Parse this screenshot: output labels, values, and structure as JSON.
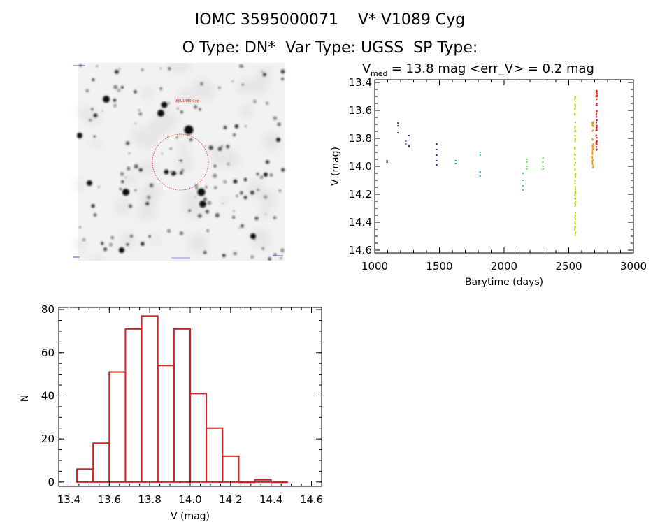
{
  "header": {
    "title_line1": "IOMC 3595000071    V* V1089 Cyg",
    "title_line2": "O Type: DN*  Var Type: UGSS  SP Type:"
  },
  "colors": {
    "histogram": "#cc2222",
    "sky_circle": "#dd2222",
    "lc_palette": [
      "#22228a",
      "#2a3fb0",
      "#2a7fd0",
      "#22c0d8",
      "#2ad08a",
      "#4cd04c",
      "#a8e020",
      "#ff9a10",
      "#dd2222"
    ]
  },
  "chart_data": [
    {
      "type": "image",
      "name": "sky-field",
      "label_top": "V* V1089 Cyg",
      "has_circle": true
    },
    {
      "type": "scatter",
      "title_prefix": "V",
      "title_sub": "med",
      "title_rest": " = 13.8 mag <err_V> = 0.2 mag",
      "xlabel": "Barytime (days)",
      "ylabel": "V (mag)",
      "xlim": [
        1000,
        3000
      ],
      "ylim": [
        14.62,
        13.38
      ],
      "xticks": [
        1000,
        1500,
        2000,
        2500,
        3000
      ],
      "yticks": [
        "13.4",
        "13.6",
        "13.8",
        "14.0",
        "14.2",
        "14.4",
        "14.6"
      ],
      "ytick_values": [
        13.4,
        13.6,
        13.8,
        14.0,
        14.2,
        14.4,
        14.6
      ],
      "groups": [
        {
          "x": 1095,
          "v": [
            13.96,
            13.97
          ],
          "color": "#22228a"
        },
        {
          "x": 1180,
          "v": [
            13.69,
            13.71,
            13.76
          ],
          "color": "#22228a"
        },
        {
          "x": 1240,
          "v": [
            13.82,
            13.84
          ],
          "color": "#2a3fb0"
        },
        {
          "x": 1265,
          "v": [
            13.78,
            13.85,
            13.86
          ],
          "color": "#2a3fb0"
        },
        {
          "x": 1480,
          "v": [
            13.84,
            13.88,
            13.92,
            13.96,
            13.99
          ],
          "color": "#2a3fb0"
        },
        {
          "x": 1625,
          "v": [
            13.96,
            13.98
          ],
          "color": "#2a7fd0"
        },
        {
          "x": 1815,
          "v": [
            13.9,
            13.92,
            14.04,
            14.07
          ],
          "color": "#22c0d8"
        },
        {
          "x": 2145,
          "v": [
            14.05,
            14.1,
            14.14,
            14.17
          ],
          "color": "#2ad08a"
        },
        {
          "x": 2175,
          "v": [
            13.95,
            13.97,
            14.0,
            14.02
          ],
          "color": "#4cd04c"
        },
        {
          "x": 2300,
          "v": [
            13.94,
            13.97,
            14.0,
            14.02
          ],
          "color": "#4cd04c"
        },
        {
          "x": 2550,
          "v_range": [
            13.5,
            14.52
          ],
          "count": 90,
          "color": "#a8e020"
        },
        {
          "x": 2685,
          "v_range": [
            13.68,
            14.02
          ],
          "count": 40,
          "color": "#ff9a10"
        },
        {
          "x": 2715,
          "v_range": [
            13.44,
            13.9
          ],
          "count": 45,
          "color": "#dd2222"
        }
      ]
    },
    {
      "type": "bar",
      "xlabel": "V (mag)",
      "ylabel": "N",
      "xlim": [
        13.35,
        14.65
      ],
      "ylim": [
        -2,
        81
      ],
      "xticks": [
        "13.4",
        "13.6",
        "13.8",
        "14.0",
        "14.2",
        "14.4",
        "14.6"
      ],
      "xtick_values": [
        13.4,
        13.6,
        13.8,
        14.0,
        14.2,
        14.4,
        14.6
      ],
      "yticks": [
        "0",
        "20",
        "40",
        "60",
        "80"
      ],
      "ytick_values": [
        0,
        20,
        40,
        60,
        80
      ],
      "bin_width": 0.08,
      "bin_start": 13.44,
      "values": [
        6,
        18,
        51,
        71,
        77,
        54,
        71,
        41,
        25,
        12,
        0,
        1,
        0
      ]
    }
  ]
}
